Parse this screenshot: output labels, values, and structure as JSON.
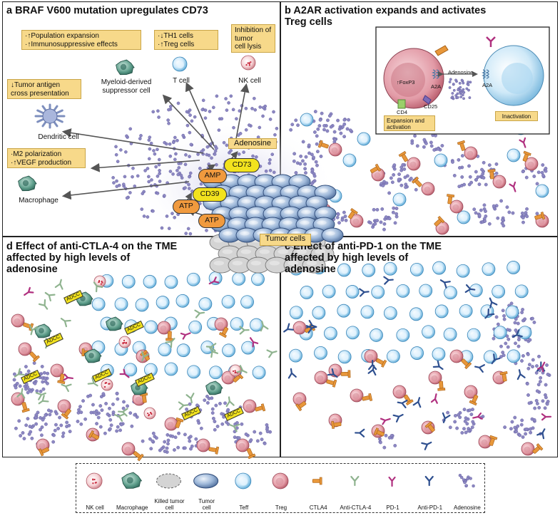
{
  "panels": {
    "a": {
      "title": "a  BRAF V600 mutation upregulates CD73"
    },
    "b": {
      "title": "b  A2AR activation expands and activates\n     Treg cells"
    },
    "c": {
      "title": "c  Effect of anti-PD-1 on the TME\n     affected by high levels of\n     adenosine"
    },
    "d": {
      "title": "d  Effect of anti-CTLA-4 on the TME\n     affected by high levels of\n     adenosine"
    }
  },
  "boxes": {
    "population": "·↑Population expansion\n·↑Immunosuppressive effects",
    "th1": "·↓TH1 cells\n·↑Treg cells",
    "inhibition": "Inhibition of\ntumor\ncell lysis",
    "antigen": "↓Tumor antigen\ncross presentation",
    "m2": "·M2 polarization\n·↑VEGF production",
    "expansion": "Expansion and\nactivation",
    "inactivation": "Inactivation"
  },
  "cells": {
    "myeloid": "Myeloid-derived\nsuppressor cell",
    "tcell": "T cell",
    "nkcell": "NK cell",
    "dendritic": "Dendritic cell",
    "macrophage": "Macrophage"
  },
  "pathway": {
    "adenosine": "Adenosine",
    "cd73": "CD73",
    "amp": "AMP",
    "cd39": "CD39",
    "atp1": "ATP",
    "atp2": "ATP",
    "tumor": "Tumor cells"
  },
  "inset": {
    "foxp3": "↑FoxP3",
    "a2a_left": "A2A",
    "a2a_right": "A2A",
    "adenosine": "Adenosine",
    "cd4": "CD4",
    "cd25": "CD25"
  },
  "adcc": "ADCC",
  "legend": [
    {
      "label": "NK cell",
      "icon": "nk-cell-icon"
    },
    {
      "label": "Macrophage",
      "icon": "macrophage-icon"
    },
    {
      "label": "Killed tumor\ncell",
      "icon": "killed-tumor-cell-icon"
    },
    {
      "label": "Tumor\ncell",
      "icon": "tumor-cell-icon"
    },
    {
      "label": "Teff",
      "icon": "teff-cell-icon"
    },
    {
      "label": "Treg",
      "icon": "treg-cell-icon"
    },
    {
      "label": "CTLA4",
      "icon": "ctla4-icon"
    },
    {
      "label": "Anti-CTLA-4",
      "icon": "anti-ctla4-icon"
    },
    {
      "label": "PD-1",
      "icon": "pd1-icon"
    },
    {
      "label": "Anti-PD-1",
      "icon": "anti-pd1-icon"
    },
    {
      "label": "Adenosine",
      "icon": "adenosine-icon"
    }
  ],
  "colors": {
    "teff": "#bfe3f7",
    "treg": "#e9a3ad",
    "ctla4": "#e8973a",
    "anti_ctla4": "#8fb38f",
    "pd1": "#b0307f",
    "anti_pd1": "#2e4f8f",
    "adenosine": "#8d88c2",
    "box": "#f7d98a",
    "enzyme_yellow": "#f2e21e",
    "enzyme_orange": "#f09a3e",
    "tumor": "#7f9fc7"
  }
}
